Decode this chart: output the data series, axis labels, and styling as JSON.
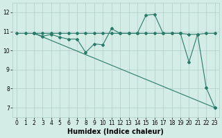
{
  "xlabel": "Humidex (Indice chaleur)",
  "bg_color": "#d4ece6",
  "line_color": "#2a7a6a",
  "grid_color": "#aecec6",
  "xlim": [
    -0.5,
    23.5
  ],
  "ylim": [
    6.5,
    12.5
  ],
  "xticks": [
    0,
    1,
    2,
    3,
    4,
    5,
    6,
    7,
    8,
    9,
    10,
    11,
    12,
    13,
    14,
    15,
    16,
    17,
    18,
    19,
    20,
    21,
    22,
    23
  ],
  "yticks": [
    7,
    8,
    9,
    10,
    11,
    12
  ],
  "line1_x": [
    0,
    1,
    2,
    3,
    4,
    5,
    6,
    7,
    8,
    9,
    10,
    11,
    12,
    13,
    14,
    15,
    16,
    17,
    18,
    19,
    20,
    21,
    22,
    23
  ],
  "line1_y": [
    10.9,
    10.9,
    10.9,
    10.9,
    10.9,
    10.9,
    10.9,
    10.9,
    10.9,
    10.9,
    10.9,
    10.9,
    10.9,
    10.9,
    10.9,
    10.9,
    10.9,
    10.9,
    10.9,
    10.9,
    10.85,
    10.85,
    10.9,
    10.9
  ],
  "line2_x": [
    2,
    3,
    4,
    5,
    6,
    7,
    8,
    9,
    10,
    11,
    12,
    13,
    14,
    15,
    16,
    17,
    18,
    19,
    20,
    21,
    22,
    23
  ],
  "line2_y": [
    10.9,
    10.75,
    10.85,
    10.7,
    10.6,
    10.6,
    9.9,
    10.35,
    10.3,
    11.15,
    10.9,
    10.9,
    10.9,
    11.85,
    11.9,
    10.9,
    10.9,
    10.9,
    9.4,
    10.85,
    8.05,
    7.0
  ],
  "line3_x": [
    2,
    23
  ],
  "line3_y": [
    10.9,
    7.0
  ],
  "figsize": [
    3.2,
    2.0
  ],
  "dpi": 100,
  "tick_fontsize": 5.5,
  "xlabel_fontsize": 7
}
